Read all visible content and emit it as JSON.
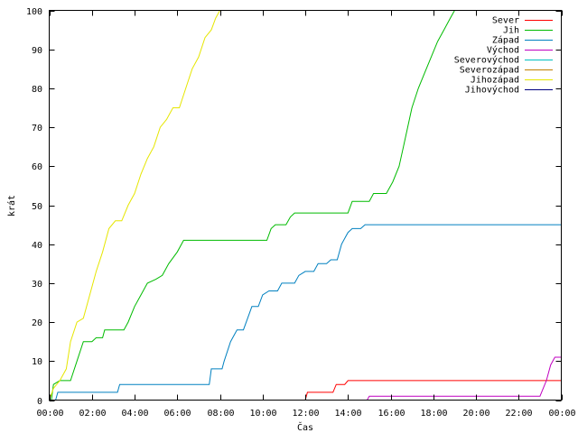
{
  "chart_data": {
    "type": "line",
    "xlabel": "Čas",
    "ylabel": "krát",
    "xlim": [
      0,
      24
    ],
    "ylim": [
      0,
      100
    ],
    "grid": false,
    "legend_position": "top-right",
    "x_ticks": [
      {
        "value": 0,
        "label": "00:00"
      },
      {
        "value": 2,
        "label": "02:00"
      },
      {
        "value": 4,
        "label": "04:00"
      },
      {
        "value": 6,
        "label": "06:00"
      },
      {
        "value": 8,
        "label": "08:00"
      },
      {
        "value": 10,
        "label": "10:00"
      },
      {
        "value": 12,
        "label": "12:00"
      },
      {
        "value": 14,
        "label": "14:00"
      },
      {
        "value": 16,
        "label": "16:00"
      },
      {
        "value": 18,
        "label": "18:00"
      },
      {
        "value": 20,
        "label": "20:00"
      },
      {
        "value": 22,
        "label": "22:00"
      },
      {
        "value": 24,
        "label": "00:00"
      }
    ],
    "y_ticks": [
      0,
      10,
      20,
      30,
      40,
      50,
      60,
      70,
      80,
      90,
      100
    ],
    "series": [
      {
        "name": "Sever",
        "color": "#ff0000",
        "points": [
          [
            12.0,
            0
          ],
          [
            12.1,
            2
          ],
          [
            13.3,
            2
          ],
          [
            13.45,
            4
          ],
          [
            13.85,
            4
          ],
          [
            14.0,
            5
          ],
          [
            24.0,
            5
          ]
        ]
      },
      {
        "name": "Jih",
        "color": "#00bb00",
        "points": [
          [
            0.1,
            0
          ],
          [
            0.2,
            4
          ],
          [
            0.5,
            5
          ],
          [
            1.0,
            5
          ],
          [
            1.3,
            10
          ],
          [
            1.6,
            15
          ],
          [
            2.0,
            15
          ],
          [
            2.2,
            16
          ],
          [
            2.5,
            16
          ],
          [
            2.6,
            18
          ],
          [
            3.5,
            18
          ],
          [
            3.7,
            20
          ],
          [
            4.0,
            24
          ],
          [
            4.3,
            27
          ],
          [
            4.6,
            30
          ],
          [
            5.0,
            31
          ],
          [
            5.3,
            32
          ],
          [
            5.6,
            35
          ],
          [
            6.0,
            38
          ],
          [
            6.3,
            41
          ],
          [
            10.2,
            41
          ],
          [
            10.4,
            44
          ],
          [
            10.6,
            45
          ],
          [
            11.1,
            45
          ],
          [
            11.3,
            47
          ],
          [
            11.5,
            48
          ],
          [
            14.0,
            48
          ],
          [
            14.2,
            51
          ],
          [
            15.0,
            51
          ],
          [
            15.2,
            53
          ],
          [
            15.8,
            53
          ],
          [
            16.1,
            56
          ],
          [
            16.4,
            60
          ],
          [
            16.6,
            65
          ],
          [
            16.8,
            70
          ],
          [
            17.0,
            75
          ],
          [
            17.3,
            80
          ],
          [
            17.6,
            84
          ],
          [
            17.9,
            88
          ],
          [
            18.2,
            92
          ],
          [
            18.5,
            95
          ],
          [
            18.8,
            98
          ],
          [
            19.0,
            100
          ]
        ]
      },
      {
        "name": "Západ",
        "color": "#0080c0",
        "points": [
          [
            0.3,
            0
          ],
          [
            0.4,
            2
          ],
          [
            3.2,
            2
          ],
          [
            3.3,
            4
          ],
          [
            7.5,
            4
          ],
          [
            7.6,
            8
          ],
          [
            8.1,
            8
          ],
          [
            8.2,
            10
          ],
          [
            8.5,
            15
          ],
          [
            8.8,
            18
          ],
          [
            9.1,
            18
          ],
          [
            9.3,
            21
          ],
          [
            9.5,
            24
          ],
          [
            9.8,
            24
          ],
          [
            10.0,
            27
          ],
          [
            10.3,
            28
          ],
          [
            10.7,
            28
          ],
          [
            10.9,
            30
          ],
          [
            11.5,
            30
          ],
          [
            11.7,
            32
          ],
          [
            12.0,
            33
          ],
          [
            12.4,
            33
          ],
          [
            12.6,
            35
          ],
          [
            13.0,
            35
          ],
          [
            13.2,
            36
          ],
          [
            13.5,
            36
          ],
          [
            13.7,
            40
          ],
          [
            14.0,
            43
          ],
          [
            14.2,
            44
          ],
          [
            14.6,
            44
          ],
          [
            14.8,
            45
          ],
          [
            24.0,
            45
          ]
        ]
      },
      {
        "name": "Východ",
        "color": "#c000c0",
        "points": [
          [
            14.9,
            0
          ],
          [
            15.0,
            1
          ],
          [
            23.0,
            1
          ],
          [
            23.3,
            5
          ],
          [
            23.5,
            9
          ],
          [
            23.7,
            11
          ],
          [
            24.0,
            11
          ]
        ]
      },
      {
        "name": "Severovýchod",
        "color": "#00c0c0",
        "points": []
      },
      {
        "name": "Severozápad",
        "color": "#c08000",
        "points": []
      },
      {
        "name": "Jihozápad",
        "color": "#e6e600",
        "points": [
          [
            0.0,
            0
          ],
          [
            0.2,
            3
          ],
          [
            0.5,
            5
          ],
          [
            0.8,
            8
          ],
          [
            1.0,
            15
          ],
          [
            1.3,
            20
          ],
          [
            1.6,
            21
          ],
          [
            1.9,
            27
          ],
          [
            2.2,
            33
          ],
          [
            2.5,
            38
          ],
          [
            2.8,
            44
          ],
          [
            3.1,
            46
          ],
          [
            3.4,
            46
          ],
          [
            3.7,
            50
          ],
          [
            4.0,
            53
          ],
          [
            4.3,
            58
          ],
          [
            4.6,
            62
          ],
          [
            4.9,
            65
          ],
          [
            5.2,
            70
          ],
          [
            5.5,
            72
          ],
          [
            5.8,
            75
          ],
          [
            6.1,
            75
          ],
          [
            6.4,
            80
          ],
          [
            6.7,
            85
          ],
          [
            7.0,
            88
          ],
          [
            7.3,
            93
          ],
          [
            7.6,
            95
          ],
          [
            7.8,
            98
          ],
          [
            8.0,
            100
          ]
        ]
      },
      {
        "name": "Jihovýchod",
        "color": "#000080",
        "points": []
      }
    ]
  }
}
